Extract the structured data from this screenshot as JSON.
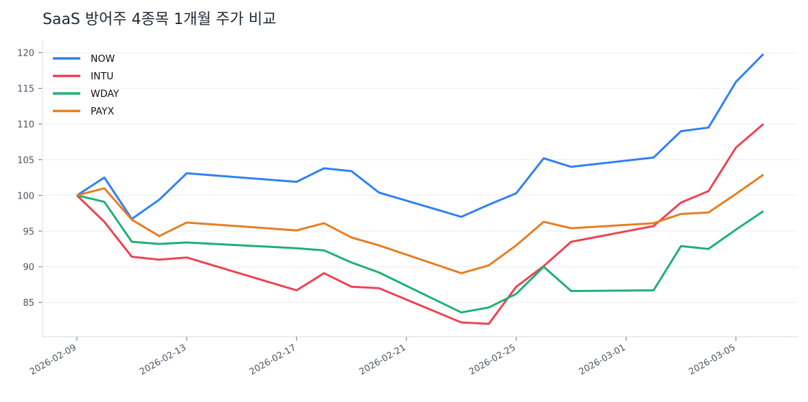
{
  "chart_data": {
    "type": "line",
    "title": "SaaS 방어주 4종목 1개월 주가 비교",
    "x": [
      "2026-02-09",
      "2026-02-10",
      "2026-02-11",
      "2026-02-12",
      "2026-02-13",
      "2026-02-17",
      "2026-02-18",
      "2026-02-19",
      "2026-02-20",
      "2026-02-23",
      "2026-02-24",
      "2026-02-25",
      "2026-02-26",
      "2026-02-27",
      "2026-03-02",
      "2026-03-03",
      "2026-03-04",
      "2026-03-05",
      "2026-03-06"
    ],
    "series": [
      {
        "name": "NOW",
        "color": "#2f80f5",
        "values": [
          100,
          102.5,
          96.7,
          99.4,
          103.1,
          101.9,
          103.8,
          103.4,
          100.4,
          97.0,
          98.7,
          100.3,
          105.2,
          104.0,
          105.3,
          109.0,
          109.5,
          115.9,
          119.8
        ]
      },
      {
        "name": "INTU",
        "color": "#ef4153",
        "values": [
          100,
          96.3,
          91.4,
          91.0,
          91.3,
          86.7,
          89.1,
          87.2,
          87.0,
          82.2,
          82.0,
          87.2,
          90.1,
          93.5,
          95.7,
          99.0,
          100.6,
          106.7,
          110.0
        ]
      },
      {
        "name": "WDAY",
        "color": "#1db075",
        "values": [
          100,
          99.1,
          93.5,
          93.2,
          93.4,
          92.6,
          92.3,
          90.6,
          89.2,
          83.6,
          84.3,
          86.2,
          90.0,
          86.6,
          86.7,
          92.9,
          92.5,
          95.2,
          97.8
        ]
      },
      {
        "name": "PAYX",
        "color": "#e67e22",
        "values": [
          100,
          101.0,
          96.6,
          94.3,
          96.2,
          95.1,
          96.1,
          94.1,
          93.0,
          89.1,
          90.2,
          93.0,
          96.3,
          95.4,
          96.1,
          97.4,
          97.6,
          100.2,
          102.9
        ]
      }
    ],
    "xticks": [
      "2026-02-09",
      "2026-02-13",
      "2026-02-17",
      "2026-02-21",
      "2026-02-25",
      "2026-03-01",
      "2026-03-05"
    ],
    "yticks": [
      85,
      90,
      95,
      100,
      105,
      110,
      115,
      120
    ],
    "ylim": [
      80.2,
      121.6
    ],
    "grid": "horizontal",
    "legend": "top-left"
  }
}
